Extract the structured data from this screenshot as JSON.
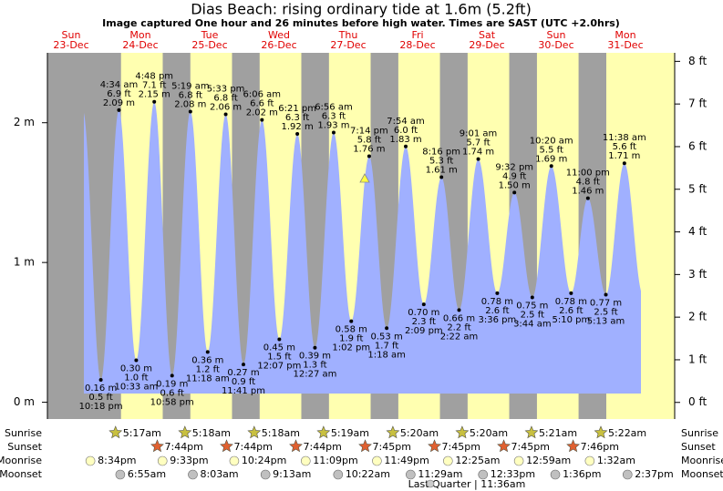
{
  "chart_data": {
    "type": "tide",
    "title": "Dias Beach: rising  ordinary tide at 1.6m (5.2ft)",
    "subtitle": "Image captured One hour and 26 minutes before high water. Times are SAST (UTC +2.0hrs)",
    "ylim": [
      -0.12,
      2.5
    ],
    "yticks": [
      {
        "value": 0,
        "label": "0 m"
      },
      {
        "value": 1,
        "label": "1 m"
      },
      {
        "value": 2,
        "label": "2 m"
      }
    ],
    "y2lim": [
      -0.39,
      8.2
    ],
    "y2ticks": [
      {
        "value": 0,
        "label": "0 ft"
      },
      {
        "value": 1,
        "label": "1 ft"
      },
      {
        "value": 2,
        "label": "2 ft"
      },
      {
        "value": 3,
        "label": "3 ft"
      },
      {
        "value": 4,
        "label": "4 ft"
      },
      {
        "value": 5,
        "label": "5 ft"
      },
      {
        "value": 6,
        "label": "6 ft"
      },
      {
        "value": 7,
        "label": "7 ft"
      },
      {
        "value": 8,
        "label": "8 ft"
      }
    ],
    "row_labels": [
      "Sunrise",
      "Sunset",
      "Moonrise",
      "Moonset"
    ],
    "moon_phase": "Last Quarter | 11:36am",
    "days": [
      {
        "weekday": "Sun",
        "date": "23-Dec",
        "sunrise": null,
        "sunset": null,
        "moonrise": "8:34pm",
        "moonset": null,
        "tides": [
          {
            "time": "10:18 pm",
            "height": 0.16,
            "height_label": "0.16 m",
            "feet_label": "0.5 ft"
          }
        ]
      },
      {
        "weekday": "Mon",
        "date": "24-Dec",
        "sunrise": "5:17am",
        "sunset": "7:44pm",
        "moonrise": "9:33pm",
        "moonset": "6:55am",
        "tides": [
          {
            "time": "4:34 am",
            "height": 2.09,
            "height_label": "2.09 m",
            "feet_label": "6.9 ft"
          },
          {
            "time": "10:33 am",
            "height": 0.3,
            "height_label": "0.30 m",
            "feet_label": "1.0 ft"
          },
          {
            "time": "4:48 pm",
            "height": 2.15,
            "height_label": "2.15 m",
            "feet_label": "7.1 ft"
          },
          {
            "time": "10:58 pm",
            "height": 0.19,
            "height_label": "0.19 m",
            "feet_label": "0.6 ft"
          }
        ]
      },
      {
        "weekday": "Tue",
        "date": "25-Dec",
        "sunrise": "5:18am",
        "sunset": "7:44pm",
        "moonrise": "10:24pm",
        "moonset": "8:03am",
        "tides": [
          {
            "time": "5:19 am",
            "height": 2.08,
            "height_label": "2.08 m",
            "feet_label": "6.8 ft"
          },
          {
            "time": "11:18 am",
            "height": 0.36,
            "height_label": "0.36 m",
            "feet_label": "1.2 ft"
          },
          {
            "time": "5:33 pm",
            "height": 2.06,
            "height_label": "2.06 m",
            "feet_label": "6.8 ft"
          },
          {
            "time": "11:41 pm",
            "height": 0.27,
            "height_label": "0.27 m",
            "feet_label": "0.9 ft"
          }
        ]
      },
      {
        "weekday": "Wed",
        "date": "26-Dec",
        "sunrise": "5:18am",
        "sunset": "7:44pm",
        "moonrise": "11:09pm",
        "moonset": "9:13am",
        "tides": [
          {
            "time": "6:06 am",
            "height": 2.02,
            "height_label": "2.02 m",
            "feet_label": "6.6 ft"
          },
          {
            "time": "12:07 pm",
            "height": 0.45,
            "height_label": "0.45 m",
            "feet_label": "1.5 ft"
          },
          {
            "time": "6:21 pm",
            "height": 1.92,
            "height_label": "1.92 m",
            "feet_label": "6.3 ft"
          }
        ]
      },
      {
        "weekday": "Thu",
        "date": "27-Dec",
        "sunrise": "5:19am",
        "sunset": "7:45pm",
        "moonrise": "11:49pm",
        "moonset": "10:22am",
        "tides": [
          {
            "time": "12:27 am",
            "height": 0.39,
            "height_label": "0.39 m",
            "feet_label": "1.3 ft"
          },
          {
            "time": "6:56 am",
            "height": 1.93,
            "height_label": "1.93 m",
            "feet_label": "6.3 ft"
          },
          {
            "time": "1:02 pm",
            "height": 0.58,
            "height_label": "0.58 m",
            "feet_label": "1.9 ft"
          },
          {
            "time": "7:14 pm",
            "height": 1.76,
            "height_label": "1.76 m",
            "feet_label": "5.8 ft"
          }
        ]
      },
      {
        "weekday": "Fri",
        "date": "28-Dec",
        "sunrise": "5:20am",
        "sunset": "7:45pm",
        "moonrise": null,
        "moonset": "11:29am",
        "tides": [
          {
            "time": "1:18 am",
            "height": 0.53,
            "height_label": "0.53 m",
            "feet_label": "1.7 ft"
          },
          {
            "time": "7:54 am",
            "height": 1.83,
            "height_label": "1.83 m",
            "feet_label": "6.0 ft"
          },
          {
            "time": "2:09 pm",
            "height": 0.7,
            "height_label": "0.70 m",
            "feet_label": "2.3 ft"
          },
          {
            "time": "8:16 pm",
            "height": 1.61,
            "height_label": "1.61 m",
            "feet_label": "5.3 ft"
          }
        ]
      },
      {
        "weekday": "Sat",
        "date": "29-Dec",
        "sunrise": "5:20am",
        "sunset": "7:45pm",
        "moonrise": "12:25am",
        "moonset": "12:33pm",
        "tides": [
          {
            "time": "2:22 am",
            "height": 0.66,
            "height_label": "0.66 m",
            "feet_label": "2.2 ft"
          },
          {
            "time": "9:01 am",
            "height": 1.74,
            "height_label": "1.74 m",
            "feet_label": "5.7 ft"
          },
          {
            "time": "3:36 pm",
            "height": 0.78,
            "height_label": "0.78 m",
            "feet_label": "2.6 ft"
          },
          {
            "time": "9:32 pm",
            "height": 1.5,
            "height_label": "1.50 m",
            "feet_label": "4.9 ft"
          }
        ]
      },
      {
        "weekday": "Sun",
        "date": "30-Dec",
        "sunrise": "5:21am",
        "sunset": "7:46pm",
        "moonrise": "12:59am",
        "moonset": "1:36pm",
        "tides": [
          {
            "time": "3:44 am",
            "height": 0.75,
            "height_label": "0.75 m",
            "feet_label": "2.5 ft"
          },
          {
            "time": "10:20 am",
            "height": 1.69,
            "height_label": "1.69 m",
            "feet_label": "5.5 ft"
          },
          {
            "time": "5:10 pm",
            "height": 0.78,
            "height_label": "0.78 m",
            "feet_label": "2.6 ft"
          },
          {
            "time": "11:00 pm",
            "height": 1.46,
            "height_label": "1.46 m",
            "feet_label": "4.8 ft"
          }
        ]
      },
      {
        "weekday": "Mon",
        "date": "31-Dec",
        "sunrise": "5:22am",
        "sunset": null,
        "moonrise": "1:32am",
        "moonset": "2:37pm",
        "tides": [
          {
            "time": "5:13 am",
            "height": 0.77,
            "height_label": "0.77 m",
            "feet_label": "2.5 ft"
          },
          {
            "time": "11:38 am",
            "height": 1.71,
            "height_label": "1.71 m",
            "feet_label": "5.6 ft"
          }
        ]
      }
    ]
  }
}
